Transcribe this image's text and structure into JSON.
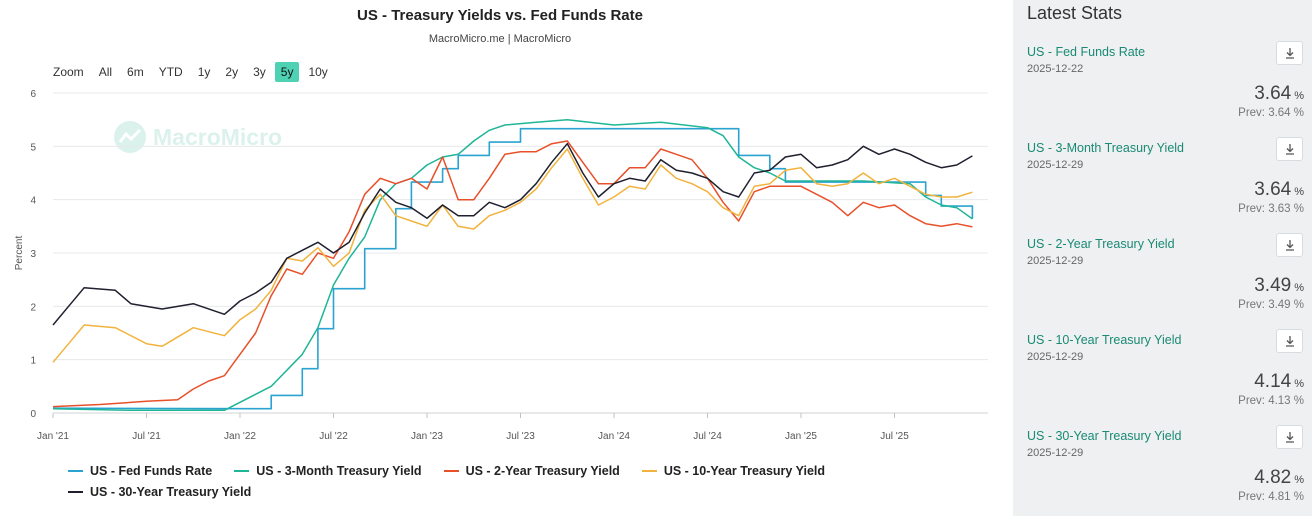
{
  "chart_title": "US - Treasury Yields vs. Fed Funds Rate",
  "chart_subtitle": "MacroMicro.me | MacroMicro",
  "watermark": "MacroMicro",
  "zoom": {
    "label": "Zoom",
    "options": [
      "All",
      "6m",
      "YTD",
      "1y",
      "2y",
      "3y",
      "5y",
      "10y"
    ],
    "active": "5y"
  },
  "latest_stats": {
    "title": "Latest Stats",
    "items": [
      {
        "name": "US - Fed Funds Rate",
        "date": "2025-12-22",
        "value": "3.64",
        "unit": "%",
        "prev": "Prev: 3.64 %"
      },
      {
        "name": "US - 3-Month Treasury Yield",
        "date": "2025-12-29",
        "value": "3.64",
        "unit": "%",
        "prev": "Prev: 3.63 %"
      },
      {
        "name": "US - 2-Year Treasury Yield",
        "date": "2025-12-29",
        "value": "3.49",
        "unit": "%",
        "prev": "Prev: 3.49 %"
      },
      {
        "name": "US - 10-Year Treasury Yield",
        "date": "2025-12-29",
        "value": "4.14",
        "unit": "%",
        "prev": "Prev: 4.13 %"
      },
      {
        "name": "US - 30-Year Treasury Yield",
        "date": "2025-12-29",
        "value": "4.82",
        "unit": "%",
        "prev": "Prev: 4.81 %"
      }
    ]
  },
  "chart_data": {
    "type": "line",
    "ylabel": "Percent",
    "ylim": [
      0,
      6
    ],
    "yticks": [
      "0",
      "1",
      "2",
      "3",
      "4",
      "5",
      "6"
    ],
    "x_start": "2021-01",
    "x_end": "2025-12",
    "xticks": [
      "Jan '21",
      "Jul '21",
      "Jan '22",
      "Jul '22",
      "Jan '23",
      "Jul '23",
      "Jan '24",
      "Jul '24",
      "Jan '25",
      "Jul '25"
    ],
    "grid": true,
    "legend_position": "bottom",
    "series": [
      {
        "name": "US - Fed Funds Rate",
        "color": "#2aa3d0",
        "step": true,
        "points": [
          [
            "2021-01",
            0.09
          ],
          [
            "2022-03",
            0.08
          ],
          [
            "2022-03",
            0.33
          ],
          [
            "2022-05",
            0.33
          ],
          [
            "2022-05",
            0.83
          ],
          [
            "2022-06",
            0.83
          ],
          [
            "2022-06",
            1.58
          ],
          [
            "2022-07",
            1.58
          ],
          [
            "2022-07",
            2.33
          ],
          [
            "2022-09",
            2.33
          ],
          [
            "2022-09",
            3.08
          ],
          [
            "2022-11",
            3.08
          ],
          [
            "2022-11",
            3.83
          ],
          [
            "2022-12",
            3.83
          ],
          [
            "2022-12",
            4.33
          ],
          [
            "2023-02",
            4.33
          ],
          [
            "2023-02",
            4.58
          ],
          [
            "2023-03",
            4.58
          ],
          [
            "2023-03",
            4.83
          ],
          [
            "2023-05",
            4.83
          ],
          [
            "2023-05",
            5.08
          ],
          [
            "2023-07",
            5.08
          ],
          [
            "2023-07",
            5.33
          ],
          [
            "2024-09",
            5.33
          ],
          [
            "2024-09",
            4.83
          ],
          [
            "2024-11",
            4.83
          ],
          [
            "2024-11",
            4.58
          ],
          [
            "2024-12",
            4.58
          ],
          [
            "2024-12",
            4.33
          ],
          [
            "2025-09",
            4.33
          ],
          [
            "2025-09",
            4.08
          ],
          [
            "2025-10",
            4.08
          ],
          [
            "2025-10",
            3.88
          ],
          [
            "2025-12",
            3.88
          ],
          [
            "2025-12",
            3.64
          ]
        ]
      },
      {
        "name": "US - 3-Month Treasury Yield",
        "color": "#1fb597",
        "points": [
          [
            "2021-01",
            0.08
          ],
          [
            "2021-06",
            0.05
          ],
          [
            "2021-12",
            0.05
          ],
          [
            "2022-02",
            0.35
          ],
          [
            "2022-03",
            0.5
          ],
          [
            "2022-04",
            0.8
          ],
          [
            "2022-05",
            1.1
          ],
          [
            "2022-06",
            1.6
          ],
          [
            "2022-07",
            2.4
          ],
          [
            "2022-08",
            2.9
          ],
          [
            "2022-09",
            3.3
          ],
          [
            "2022-10",
            4.0
          ],
          [
            "2022-11",
            4.3
          ],
          [
            "2022-12",
            4.4
          ],
          [
            "2023-01",
            4.65
          ],
          [
            "2023-02",
            4.8
          ],
          [
            "2023-03",
            4.85
          ],
          [
            "2023-04",
            5.1
          ],
          [
            "2023-05",
            5.3
          ],
          [
            "2023-06",
            5.4
          ],
          [
            "2023-08",
            5.45
          ],
          [
            "2023-10",
            5.5
          ],
          [
            "2024-01",
            5.4
          ],
          [
            "2024-04",
            5.45
          ],
          [
            "2024-07",
            5.35
          ],
          [
            "2024-08",
            5.2
          ],
          [
            "2024-09",
            4.8
          ],
          [
            "2024-10",
            4.6
          ],
          [
            "2024-11",
            4.5
          ],
          [
            "2024-12",
            4.35
          ],
          [
            "2025-02",
            4.35
          ],
          [
            "2025-05",
            4.35
          ],
          [
            "2025-08",
            4.3
          ],
          [
            "2025-09",
            4.05
          ],
          [
            "2025-10",
            3.9
          ],
          [
            "2025-11",
            3.85
          ],
          [
            "2025-12",
            3.64
          ]
        ]
      },
      {
        "name": "US - 2-Year Treasury Yield",
        "color": "#e8502a",
        "points": [
          [
            "2021-01",
            0.12
          ],
          [
            "2021-04",
            0.16
          ],
          [
            "2021-07",
            0.22
          ],
          [
            "2021-09",
            0.25
          ],
          [
            "2021-10",
            0.45
          ],
          [
            "2021-11",
            0.6
          ],
          [
            "2021-12",
            0.7
          ],
          [
            "2022-01",
            1.1
          ],
          [
            "2022-02",
            1.5
          ],
          [
            "2022-03",
            2.2
          ],
          [
            "2022-04",
            2.7
          ],
          [
            "2022-05",
            2.6
          ],
          [
            "2022-06",
            3.0
          ],
          [
            "2022-07",
            2.9
          ],
          [
            "2022-08",
            3.4
          ],
          [
            "2022-09",
            4.1
          ],
          [
            "2022-10",
            4.4
          ],
          [
            "2022-11",
            4.3
          ],
          [
            "2022-12",
            4.4
          ],
          [
            "2023-01",
            4.2
          ],
          [
            "2023-02",
            4.8
          ],
          [
            "2023-03",
            4.0
          ],
          [
            "2023-04",
            4.0
          ],
          [
            "2023-05",
            4.4
          ],
          [
            "2023-06",
            4.85
          ],
          [
            "2023-07",
            4.9
          ],
          [
            "2023-08",
            4.9
          ],
          [
            "2023-09",
            5.05
          ],
          [
            "2023-10",
            5.1
          ],
          [
            "2023-11",
            4.7
          ],
          [
            "2023-12",
            4.3
          ],
          [
            "2024-01",
            4.3
          ],
          [
            "2024-02",
            4.6
          ],
          [
            "2024-03",
            4.6
          ],
          [
            "2024-04",
            4.95
          ],
          [
            "2024-05",
            4.85
          ],
          [
            "2024-06",
            4.75
          ],
          [
            "2024-07",
            4.4
          ],
          [
            "2024-08",
            3.95
          ],
          [
            "2024-09",
            3.6
          ],
          [
            "2024-10",
            4.15
          ],
          [
            "2024-11",
            4.25
          ],
          [
            "2024-12",
            4.25
          ],
          [
            "2025-01",
            4.25
          ],
          [
            "2025-02",
            4.1
          ],
          [
            "2025-03",
            3.95
          ],
          [
            "2025-04",
            3.7
          ],
          [
            "2025-05",
            3.95
          ],
          [
            "2025-06",
            3.85
          ],
          [
            "2025-07",
            3.9
          ],
          [
            "2025-08",
            3.7
          ],
          [
            "2025-09",
            3.55
          ],
          [
            "2025-10",
            3.5
          ],
          [
            "2025-11",
            3.55
          ],
          [
            "2025-12",
            3.49
          ]
        ]
      },
      {
        "name": "US - 10-Year Treasury Yield",
        "color": "#f2b33d",
        "points": [
          [
            "2021-01",
            0.95
          ],
          [
            "2021-02",
            1.3
          ],
          [
            "2021-03",
            1.65
          ],
          [
            "2021-05",
            1.6
          ],
          [
            "2021-07",
            1.3
          ],
          [
            "2021-08",
            1.25
          ],
          [
            "2021-10",
            1.6
          ],
          [
            "2021-12",
            1.45
          ],
          [
            "2022-01",
            1.75
          ],
          [
            "2022-02",
            1.95
          ],
          [
            "2022-03",
            2.3
          ],
          [
            "2022-04",
            2.9
          ],
          [
            "2022-05",
            2.85
          ],
          [
            "2022-06",
            3.1
          ],
          [
            "2022-07",
            2.75
          ],
          [
            "2022-08",
            3.0
          ],
          [
            "2022-09",
            3.8
          ],
          [
            "2022-10",
            4.1
          ],
          [
            "2022-11",
            3.7
          ],
          [
            "2022-12",
            3.6
          ],
          [
            "2023-01",
            3.5
          ],
          [
            "2023-02",
            3.9
          ],
          [
            "2023-03",
            3.5
          ],
          [
            "2023-04",
            3.45
          ],
          [
            "2023-05",
            3.7
          ],
          [
            "2023-06",
            3.8
          ],
          [
            "2023-07",
            3.95
          ],
          [
            "2023-08",
            4.2
          ],
          [
            "2023-09",
            4.6
          ],
          [
            "2023-10",
            4.95
          ],
          [
            "2023-11",
            4.4
          ],
          [
            "2023-12",
            3.9
          ],
          [
            "2024-01",
            4.05
          ],
          [
            "2024-02",
            4.25
          ],
          [
            "2024-03",
            4.2
          ],
          [
            "2024-04",
            4.65
          ],
          [
            "2024-05",
            4.4
          ],
          [
            "2024-06",
            4.3
          ],
          [
            "2024-07",
            4.15
          ],
          [
            "2024-08",
            3.85
          ],
          [
            "2024-09",
            3.7
          ],
          [
            "2024-10",
            4.25
          ],
          [
            "2024-11",
            4.3
          ],
          [
            "2024-12",
            4.55
          ],
          [
            "2025-01",
            4.6
          ],
          [
            "2025-02",
            4.3
          ],
          [
            "2025-03",
            4.25
          ],
          [
            "2025-04",
            4.3
          ],
          [
            "2025-05",
            4.5
          ],
          [
            "2025-06",
            4.3
          ],
          [
            "2025-07",
            4.4
          ],
          [
            "2025-08",
            4.25
          ],
          [
            "2025-09",
            4.1
          ],
          [
            "2025-10",
            4.05
          ],
          [
            "2025-11",
            4.05
          ],
          [
            "2025-12",
            4.14
          ]
        ]
      },
      {
        "name": "US - 30-Year Treasury Yield",
        "color": "#1f1f2e",
        "points": [
          [
            "2021-01",
            1.65
          ],
          [
            "2021-02",
            2.0
          ],
          [
            "2021-03",
            2.35
          ],
          [
            "2021-05",
            2.3
          ],
          [
            "2021-06",
            2.05
          ],
          [
            "2021-08",
            1.95
          ],
          [
            "2021-10",
            2.05
          ],
          [
            "2021-12",
            1.85
          ],
          [
            "2022-01",
            2.1
          ],
          [
            "2022-02",
            2.25
          ],
          [
            "2022-03",
            2.45
          ],
          [
            "2022-04",
            2.9
          ],
          [
            "2022-05",
            3.05
          ],
          [
            "2022-06",
            3.2
          ],
          [
            "2022-07",
            3.0
          ],
          [
            "2022-08",
            3.2
          ],
          [
            "2022-09",
            3.75
          ],
          [
            "2022-10",
            4.2
          ],
          [
            "2022-11",
            3.95
          ],
          [
            "2022-12",
            3.85
          ],
          [
            "2023-01",
            3.65
          ],
          [
            "2023-02",
            3.9
          ],
          [
            "2023-03",
            3.7
          ],
          [
            "2023-04",
            3.7
          ],
          [
            "2023-05",
            3.95
          ],
          [
            "2023-06",
            3.85
          ],
          [
            "2023-07",
            4.0
          ],
          [
            "2023-08",
            4.3
          ],
          [
            "2023-09",
            4.7
          ],
          [
            "2023-10",
            5.05
          ],
          [
            "2023-11",
            4.5
          ],
          [
            "2023-12",
            4.05
          ],
          [
            "2024-01",
            4.3
          ],
          [
            "2024-02",
            4.4
          ],
          [
            "2024-03",
            4.35
          ],
          [
            "2024-04",
            4.75
          ],
          [
            "2024-05",
            4.55
          ],
          [
            "2024-06",
            4.5
          ],
          [
            "2024-07",
            4.4
          ],
          [
            "2024-08",
            4.15
          ],
          [
            "2024-09",
            4.05
          ],
          [
            "2024-10",
            4.5
          ],
          [
            "2024-11",
            4.55
          ],
          [
            "2024-12",
            4.8
          ],
          [
            "2025-01",
            4.85
          ],
          [
            "2025-02",
            4.6
          ],
          [
            "2025-03",
            4.65
          ],
          [
            "2025-04",
            4.75
          ],
          [
            "2025-05",
            5.0
          ],
          [
            "2025-06",
            4.85
          ],
          [
            "2025-07",
            4.95
          ],
          [
            "2025-08",
            4.85
          ],
          [
            "2025-09",
            4.7
          ],
          [
            "2025-10",
            4.6
          ],
          [
            "2025-11",
            4.65
          ],
          [
            "2025-12",
            4.82
          ]
        ]
      }
    ]
  }
}
